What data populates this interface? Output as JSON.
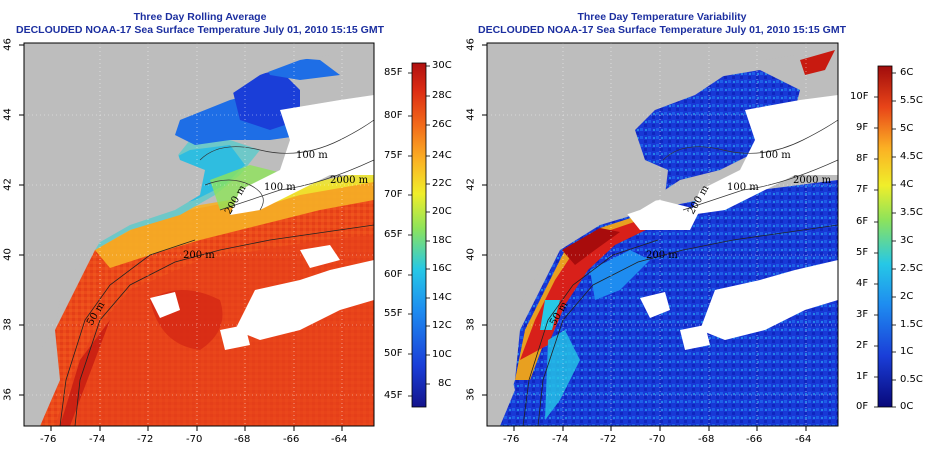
{
  "left_panel": {
    "title": "Three Day Rolling Average",
    "subtitle": "DECLOUDED NOAA-17 Sea Surface Temperature July 01, 2010 15:15 GMT",
    "colorbar": {
      "celsius_labels": [
        "30C",
        "28C",
        "26C",
        "24C",
        "22C",
        "20C",
        "18C",
        "16C",
        "14C",
        "12C",
        "10C",
        "8C"
      ],
      "fahrenheit_labels": [
        "85F",
        "80F",
        "75F",
        "70F",
        "65F",
        "60F",
        "55F",
        "50F",
        "45F"
      ]
    },
    "contour_labels": [
      "100 m",
      "100 m",
      "2000 m",
      "200 m",
      "200 m",
      "50 m"
    ]
  },
  "right_panel": {
    "title": "Three Day Temperature Variability",
    "subtitle": "DECLOUDED NOAA-17 Sea Surface Temperature July 01, 2010 15:15 GMT",
    "colorbar": {
      "celsius_labels": [
        "6C",
        "5.5C",
        "5C",
        "4.5C",
        "4C",
        "3.5C",
        "3C",
        "2.5C",
        "2C",
        "1.5C",
        "1C",
        "0.5C",
        "0C"
      ],
      "fahrenheit_labels": [
        "10F",
        "9F",
        "8F",
        "7F",
        "6F",
        "5F",
        "4F",
        "3F",
        "2F",
        "1F",
        "0F"
      ]
    },
    "contour_labels": [
      "100 m",
      "100 m",
      "2000 m",
      "200 m",
      "200 m",
      "50 m"
    ]
  },
  "axes": {
    "lon_ticks": [
      "-76",
      "-74",
      "-72",
      "-70",
      "-68",
      "-66",
      "-64"
    ],
    "lat_ticks": [
      "46",
      "44",
      "42",
      "40",
      "38",
      "36"
    ]
  },
  "colors": {
    "title": "#1c2fa0",
    "land": "#bdbdbd",
    "cloud": "#ffffff",
    "sst_warm": "#e83a16",
    "sst_hot": "#c81a10",
    "sst_cool": "#1a6ee6",
    "var_low": "#0a2ecc",
    "var_high": "#d8201a"
  }
}
